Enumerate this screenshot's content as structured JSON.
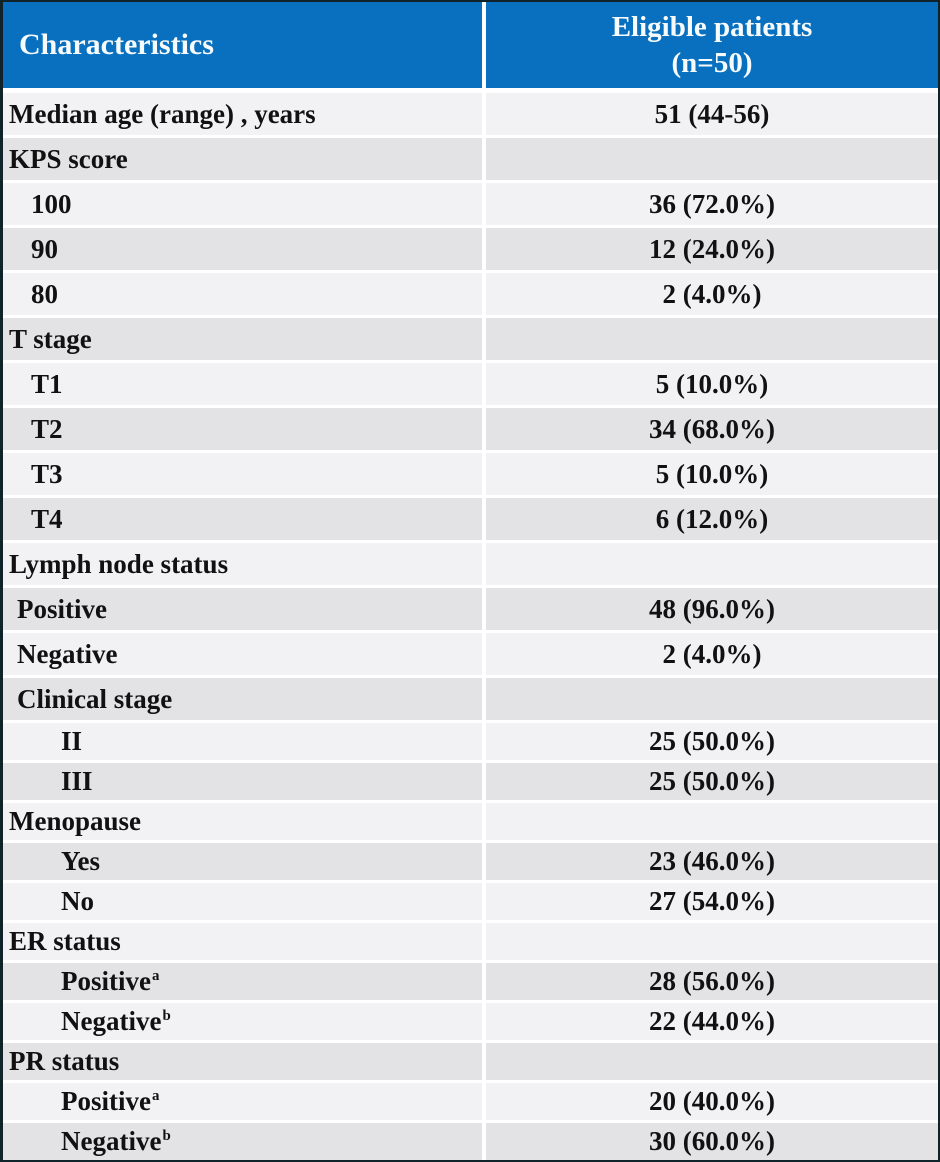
{
  "colors": {
    "header_bg": "#0870BE",
    "header_text": "#F7FBFE",
    "row_light": "#F2F1F3",
    "row_dark": "#E3E2E4",
    "body_text": "#121112",
    "divider": "#FFFFFF"
  },
  "table": {
    "header": {
      "characteristics": "Characteristics",
      "eligible_line1": "Eligible patients",
      "eligible_line2": "(n=50)"
    },
    "rows": [
      {
        "label": "Median age (range) , years",
        "value": "51 (44-56)",
        "indent": 0,
        "shade": "light"
      },
      {
        "label": "KPS score",
        "value": "",
        "indent": 0,
        "shade": "dark"
      },
      {
        "label": "100",
        "value": "36 (72.0%)",
        "indent": 2,
        "shade": "light"
      },
      {
        "label": "90",
        "value": "12 (24.0%)",
        "indent": 2,
        "shade": "dark"
      },
      {
        "label": "80",
        "value": "2 (4.0%)",
        "indent": 2,
        "shade": "light"
      },
      {
        "label": "T stage",
        "value": "",
        "indent": 0,
        "shade": "dark"
      },
      {
        "label": "T1",
        "value": "5 (10.0%)",
        "indent": 2,
        "shade": "light"
      },
      {
        "label": "T2",
        "value": "34 (68.0%)",
        "indent": 2,
        "shade": "dark"
      },
      {
        "label": "T3",
        "value": "5 (10.0%)",
        "indent": 2,
        "shade": "light"
      },
      {
        "label": "T4",
        "value": "6 (12.0%)",
        "indent": 2,
        "shade": "dark"
      },
      {
        "label": "Lymph node status",
        "value": "",
        "indent": 0,
        "shade": "light"
      },
      {
        "label": "Positive",
        "value": "48 (96.0%)",
        "indent": 1,
        "shade": "dark"
      },
      {
        "label": "Negative",
        "value": "2 (4.0%)",
        "indent": 1,
        "shade": "light"
      },
      {
        "label": "Clinical stage",
        "value": "",
        "indent": 1,
        "shade": "dark"
      },
      {
        "label": "II",
        "value": "25 (50.0%)",
        "indent": 3,
        "shade": "light"
      },
      {
        "label": "III",
        "value": "25 (50.0%)",
        "indent": 3,
        "shade": "dark"
      },
      {
        "label": "Menopause",
        "value": "",
        "indent": 0,
        "shade": "light"
      },
      {
        "label": "Yes",
        "value": "23 (46.0%)",
        "indent": 3,
        "shade": "dark"
      },
      {
        "label": "No",
        "value": "27 (54.0%)",
        "indent": 3,
        "shade": "light"
      },
      {
        "label": "ER status",
        "value": "",
        "indent": 0,
        "shade": "light"
      },
      {
        "label": "Positive",
        "sup": "a",
        "value": "28 (56.0%)",
        "indent": 3,
        "shade": "dark"
      },
      {
        "label": "Negative",
        "sup": "b",
        "value": "22 (44.0%)",
        "indent": 3,
        "shade": "light"
      },
      {
        "label": "PR status",
        "value": "",
        "indent": 0,
        "shade": "dark"
      },
      {
        "label": "Positive",
        "sup": "a",
        "value": "20 (40.0%)",
        "indent": 3,
        "shade": "light"
      },
      {
        "label": "Negative",
        "sup": "b",
        "value": "30 (60.0%)",
        "indent": 3,
        "shade": "dark"
      }
    ]
  }
}
